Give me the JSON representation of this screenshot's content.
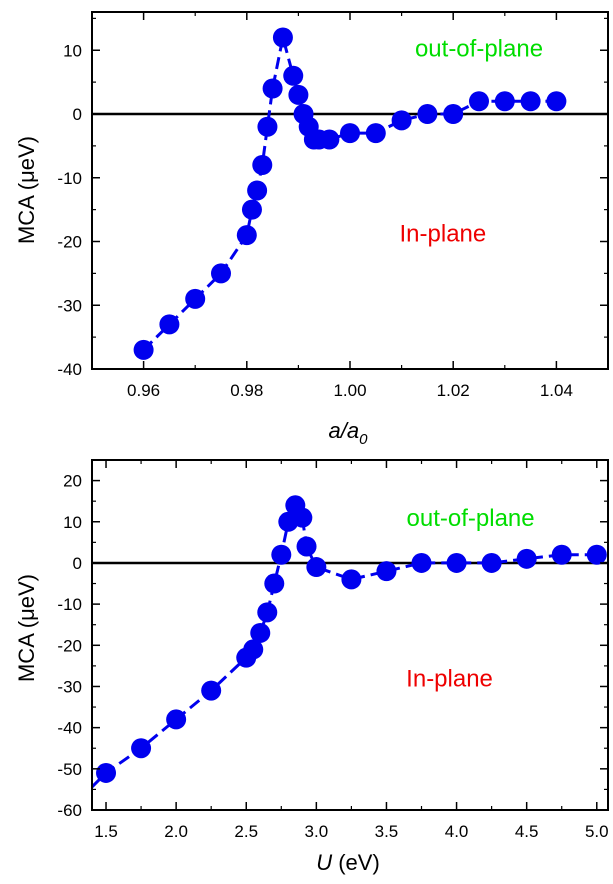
{
  "chart_data": [
    {
      "type": "line",
      "xlabel": "a/a",
      "xlabel_sub": "0",
      "ylabel": "MCA (μeV)",
      "xlim": [
        0.95,
        1.05
      ],
      "ylim": [
        -40,
        16
      ],
      "xticks": [
        0.96,
        0.98,
        1.0,
        1.02,
        1.04
      ],
      "xtick_labels": [
        "0.96",
        "0.98",
        "1.00",
        "1.02",
        "1.04"
      ],
      "yticks": [
        -40,
        -30,
        -20,
        -10,
        0,
        10
      ],
      "ytick_labels": [
        "-40",
        "-30",
        "-20",
        "-10",
        "0",
        "10"
      ],
      "zero_line": true,
      "series": [
        {
          "color": "#0000ee",
          "x": [
            0.96,
            0.965,
            0.97,
            0.975,
            0.98,
            0.981,
            0.982,
            0.983,
            0.984,
            0.985,
            0.987,
            0.989,
            0.99,
            0.991,
            0.992,
            0.993,
            0.994,
            0.996,
            1.0,
            1.005,
            1.01,
            1.015,
            1.02,
            1.025,
            1.03,
            1.035,
            1.04
          ],
          "y": [
            -37,
            -33,
            -29,
            -25,
            -19,
            -15,
            -12,
            -8,
            -2,
            4,
            12,
            6,
            3,
            0,
            -2,
            -4,
            -4,
            -4,
            -3,
            -3,
            -1,
            0,
            0,
            2,
            2,
            2,
            2
          ]
        }
      ],
      "annotations": [
        {
          "text": "out-of-plane",
          "color": "#00dd00",
          "x": 1.025,
          "y": 9
        },
        {
          "text": "In-plane",
          "color": "#ee0000",
          "x": 1.018,
          "y": -20
        }
      ]
    },
    {
      "type": "line",
      "xlabel": "U",
      "xlabel_unit": "(eV)",
      "ylabel": "MCA (μeV)",
      "xlim": [
        1.4,
        5.08
      ],
      "ylim": [
        -60,
        25
      ],
      "xticks": [
        1.5,
        2.0,
        2.5,
        3.0,
        3.5,
        4.0,
        4.5,
        5.0
      ],
      "xtick_labels": [
        "1.5",
        "2.0",
        "2.5",
        "3.0",
        "3.5",
        "4.0",
        "4.5",
        "5.0"
      ],
      "yticks": [
        -60,
        -50,
        -40,
        -30,
        -20,
        -10,
        0,
        10,
        20
      ],
      "ytick_labels": [
        "-60",
        "-50",
        "-40",
        "-30",
        "-20",
        "-10",
        "0",
        "10",
        "20"
      ],
      "zero_line": true,
      "series": [
        {
          "color": "#0000ee",
          "x": [
            1.5,
            1.75,
            2.0,
            2.25,
            2.5,
            2.55,
            2.6,
            2.65,
            2.7,
            2.75,
            2.8,
            2.85,
            2.9,
            2.93,
            3.0,
            3.25,
            3.5,
            3.75,
            4.0,
            4.25,
            4.5,
            4.75,
            5.0
          ],
          "y": [
            -51,
            -45,
            -38,
            -31,
            -23,
            -21,
            -17,
            -12,
            -5,
            2,
            10,
            14,
            11,
            4,
            -1,
            -4,
            -2,
            0,
            0,
            0,
            1,
            2,
            2
          ]
        }
      ],
      "annotations": [
        {
          "text": "out-of-plane",
          "color": "#00dd00",
          "x": 4.1,
          "y": 9
        },
        {
          "text": "In-plane",
          "color": "#ee0000",
          "x": 3.95,
          "y": -30
        }
      ]
    }
  ]
}
